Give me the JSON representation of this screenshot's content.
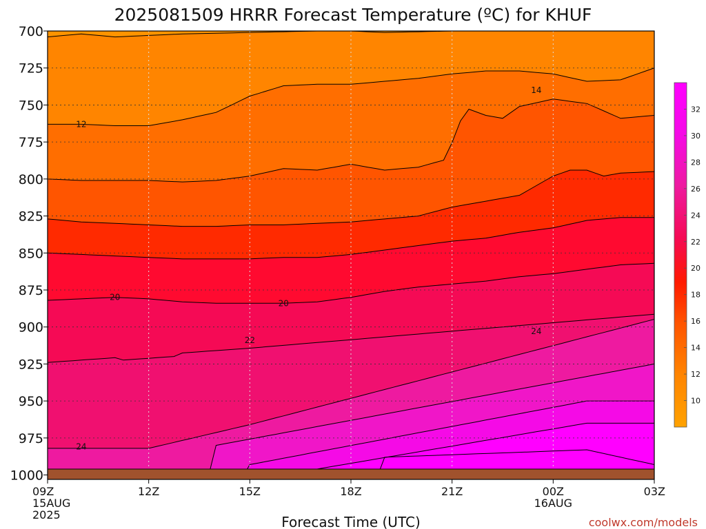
{
  "chart_data": {
    "type": "contour",
    "title": "2025081509 HRRR Forecast Temperature (ºC) for KHUF",
    "xlabel": "Forecast Time (UTC)",
    "ylabel": "",
    "credit": "coolwx.com/models",
    "y_axis": {
      "scale": "pressure (reversed)",
      "ticks": [
        700,
        725,
        750,
        775,
        800,
        825,
        850,
        875,
        900,
        925,
        950,
        975,
        1000
      ],
      "ylim": [
        1003,
        700
      ]
    },
    "x_axis": {
      "ticks": [
        {
          "hour": 0,
          "label": "09Z",
          "sub1": "15AUG",
          "sub2": "2025"
        },
        {
          "hour": 3,
          "label": "12Z",
          "sub1": "",
          "sub2": ""
        },
        {
          "hour": 6,
          "label": "15Z",
          "sub1": "",
          "sub2": ""
        },
        {
          "hour": 9,
          "label": "18Z",
          "sub1": "",
          "sub2": ""
        },
        {
          "hour": 12,
          "label": "21Z",
          "sub1": "",
          "sub2": ""
        },
        {
          "hour": 15,
          "label": "00Z",
          "sub1": "16AUG",
          "sub2": ""
        },
        {
          "hour": 18,
          "label": "03Z",
          "sub1": "",
          "sub2": ""
        }
      ],
      "xlim": [
        0,
        18
      ]
    },
    "grid": true,
    "surface_pressure": 996,
    "colorbar": {
      "position": "right",
      "ticks": [
        10,
        12,
        14,
        16,
        18,
        20,
        22,
        24,
        26,
        28,
        30,
        32
      ],
      "range": [
        8,
        34
      ]
    },
    "level_colors": [
      {
        "min": 8,
        "max": 10,
        "color": "#ffa200"
      },
      {
        "min": 10,
        "max": 12,
        "color": "#ff9400"
      },
      {
        "min": 12,
        "max": 14,
        "color": "#ff8500"
      },
      {
        "min": 14,
        "max": 16,
        "color": "#ff6e00"
      },
      {
        "min": 16,
        "max": 18,
        "color": "#ff5500"
      },
      {
        "min": 18,
        "max": 20,
        "color": "#ff2a00"
      },
      {
        "min": 20,
        "max": 22,
        "color": "#ff0a30"
      },
      {
        "min": 22,
        "max": 24,
        "color": "#f50a55"
      },
      {
        "min": 24,
        "max": 26,
        "color": "#f01070"
      },
      {
        "min": 26,
        "max": 28,
        "color": "#ee1aa0"
      },
      {
        "min": 28,
        "max": 30,
        "color": "#f016c8"
      },
      {
        "min": 30,
        "max": 32,
        "color": "#f50ae6"
      },
      {
        "min": 32,
        "max": 34,
        "color": "#ff00ff"
      }
    ],
    "contours": [
      {
        "value": 12,
        "label": "",
        "points": [
          [
            0,
            704
          ],
          [
            1,
            702
          ],
          [
            2,
            704
          ],
          [
            3,
            703
          ],
          [
            4,
            702
          ],
          [
            6,
            701
          ],
          [
            8,
            700
          ],
          [
            9,
            700
          ],
          [
            10,
            701
          ],
          [
            12,
            700
          ]
        ]
      },
      {
        "value": 12,
        "label": "12",
        "label_at": [
          1,
          763
        ],
        "points": [
          [
            0,
            763
          ],
          [
            1,
            763
          ],
          [
            2,
            764
          ],
          [
            3,
            764
          ],
          [
            4,
            760
          ],
          [
            5,
            755
          ],
          [
            6,
            744
          ],
          [
            7,
            737
          ],
          [
            8,
            736
          ],
          [
            9,
            736
          ],
          [
            10,
            734
          ],
          [
            11,
            732
          ],
          [
            12,
            729
          ],
          [
            13,
            727
          ],
          [
            14,
            727
          ],
          [
            15,
            729
          ],
          [
            16,
            734
          ],
          [
            17,
            733
          ],
          [
            18,
            725
          ]
        ]
      },
      {
        "value": 14,
        "label": "14",
        "label_at": [
          14.5,
          740
        ],
        "points": [
          [
            0,
            800
          ],
          [
            1,
            801
          ],
          [
            2,
            801
          ],
          [
            3,
            801
          ],
          [
            4,
            802
          ],
          [
            5,
            801
          ],
          [
            6,
            798
          ],
          [
            7,
            793
          ],
          [
            8,
            794
          ],
          [
            9,
            790
          ],
          [
            10,
            794
          ],
          [
            11,
            792
          ],
          [
            11.8,
            787
          ],
          [
            12.4,
            752
          ],
          [
            13,
            757
          ],
          [
            13.5,
            759
          ],
          [
            14,
            751
          ],
          [
            15,
            746
          ],
          [
            16,
            749
          ],
          [
            17,
            759
          ],
          [
            18,
            757
          ]
        ]
      },
      {
        "value": 16,
        "label": "",
        "points": [
          [
            0,
            827
          ],
          [
            1,
            829
          ],
          [
            2,
            830
          ],
          [
            3,
            831
          ],
          [
            4,
            832
          ],
          [
            5,
            832
          ],
          [
            6,
            831
          ],
          [
            7,
            831
          ],
          [
            8,
            830
          ],
          [
            9,
            829
          ],
          [
            10,
            827
          ],
          [
            11,
            825
          ],
          [
            12,
            819
          ],
          [
            13,
            815
          ],
          [
            14,
            811
          ],
          [
            15,
            798
          ],
          [
            15.5,
            794
          ],
          [
            16,
            794
          ],
          [
            16.5,
            798
          ],
          [
            17,
            796
          ],
          [
            18,
            795
          ]
        ]
      },
      {
        "value": 18,
        "label": "",
        "points": [
          [
            0,
            850
          ],
          [
            1,
            851
          ],
          [
            2,
            852
          ],
          [
            3,
            853
          ],
          [
            4,
            854
          ],
          [
            5,
            854
          ],
          [
            6,
            854
          ],
          [
            7,
            853
          ],
          [
            8,
            853
          ],
          [
            9,
            851
          ],
          [
            10,
            848
          ],
          [
            11,
            845
          ],
          [
            12,
            842
          ],
          [
            13,
            840
          ],
          [
            14,
            836
          ],
          [
            15,
            833
          ],
          [
            16,
            828
          ],
          [
            17,
            826
          ],
          [
            18,
            826
          ]
        ]
      },
      {
        "value": 20,
        "label": "20",
        "label_at": [
          2,
          880
        ],
        "label2": "20",
        "label2_at": [
          7,
          884
        ],
        "points": [
          [
            0,
            882
          ],
          [
            1,
            881
          ],
          [
            2,
            880
          ],
          [
            3,
            881
          ],
          [
            4,
            883
          ],
          [
            5,
            884
          ],
          [
            6,
            884
          ],
          [
            7,
            884
          ],
          [
            8,
            883
          ],
          [
            9,
            880
          ],
          [
            10,
            876
          ],
          [
            11,
            873
          ],
          [
            12,
            871
          ],
          [
            13,
            869
          ],
          [
            14,
            866
          ],
          [
            15,
            864
          ],
          [
            16,
            861
          ],
          [
            17,
            858
          ],
          [
            18,
            857
          ]
        ]
      },
      {
        "value": 22,
        "label": "22",
        "label_at": [
          6,
          909
        ],
        "points": [
          [
            0,
            882
          ],
          [
            18,
            857
          ]
        ]
      },
      {
        "value": 24,
        "label": "24",
        "label_at": [
          1,
          981
        ],
        "label2": "24",
        "label2_at": [
          14.5,
          903
        ],
        "points": [
          [
            0,
            910
          ],
          [
            18,
            884
          ]
        ]
      }
    ]
  }
}
